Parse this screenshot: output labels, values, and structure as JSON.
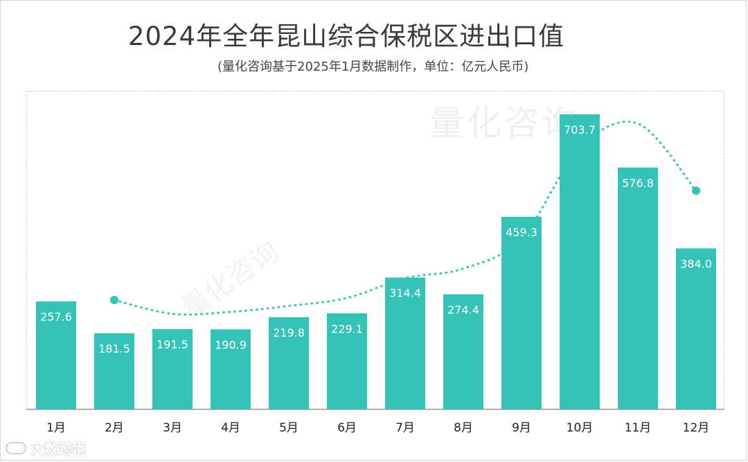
{
  "chart_data": {
    "type": "bar",
    "title": "2024年全年昆山综合保税区进出口值",
    "subtitle": "(量化咨询基于2025年1月数据制作，单位：亿元人民币)",
    "categories": [
      "1月",
      "2月",
      "3月",
      "4月",
      "5月",
      "6月",
      "7月",
      "8月",
      "9月",
      "10月",
      "11月",
      "12月"
    ],
    "values": [
      257.6,
      181.5,
      191.5,
      190.9,
      219.8,
      229.1,
      314.4,
      274.4,
      459.3,
      703.7,
      576.8,
      384.0
    ],
    "value_labels": [
      "257.6",
      "181.5",
      "191.5",
      "190.9",
      "219.8",
      "229.1",
      "314.4",
      "274.4",
      "459.3",
      "703.7",
      "576.8",
      "384.0"
    ],
    "trend_line": {
      "start_category": "2月",
      "end_category": "12月",
      "style": "dotted"
    },
    "xlabel": "",
    "ylabel": "",
    "ylim": [
      0,
      760
    ],
    "grid": false
  },
  "colors": {
    "bar": "#35c2b9",
    "trend": "#35c2b9",
    "axis_text": "#222222",
    "bar_label": "#ffffff"
  },
  "watermark": {
    "text": "量化咨询",
    "text2": "量化咨询"
  },
  "branding": {
    "logo_text": "大数跨境",
    "logo_icon": "logo-mark-icon"
  }
}
